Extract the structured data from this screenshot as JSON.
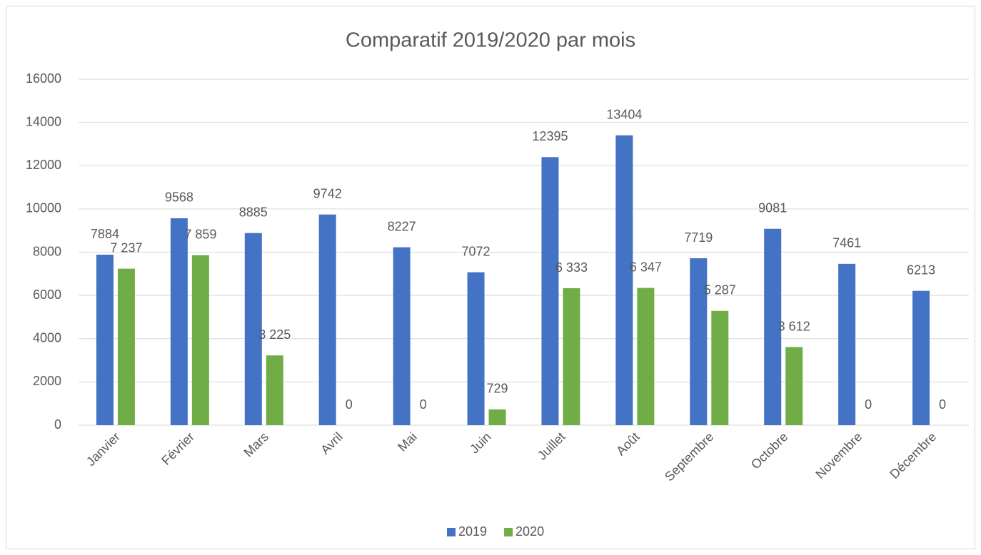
{
  "chart_data": {
    "type": "bar",
    "title": "Comparatif 2019/2020 par mois",
    "categories": [
      "Janvier",
      "Février",
      "Mars",
      "Avril",
      "Mai",
      "Juin",
      "Juillet",
      "Août",
      "Septembre",
      "Octobre",
      "Novembre",
      "Décembre"
    ],
    "series": [
      {
        "name": "2019",
        "color": "#4472c4",
        "values": [
          7884,
          9568,
          8885,
          9742,
          8227,
          7072,
          12395,
          13404,
          7719,
          9081,
          7461,
          6213
        ]
      },
      {
        "name": "2020",
        "color": "#70ad47",
        "values": [
          7237,
          7859,
          3225,
          0,
          0,
          729,
          6333,
          6347,
          5287,
          3612,
          0,
          0
        ],
        "value_labels": [
          "7 237",
          "7 859",
          "3 225",
          "0",
          "0",
          "729",
          "6 333",
          "6 347",
          "5 287",
          "3 612",
          "0",
          "0"
        ]
      }
    ],
    "ylim": [
      0,
      16000
    ],
    "yticks": [
      0,
      2000,
      4000,
      6000,
      8000,
      10000,
      12000,
      14000,
      16000
    ],
    "grid": true,
    "legend": "bottom"
  }
}
